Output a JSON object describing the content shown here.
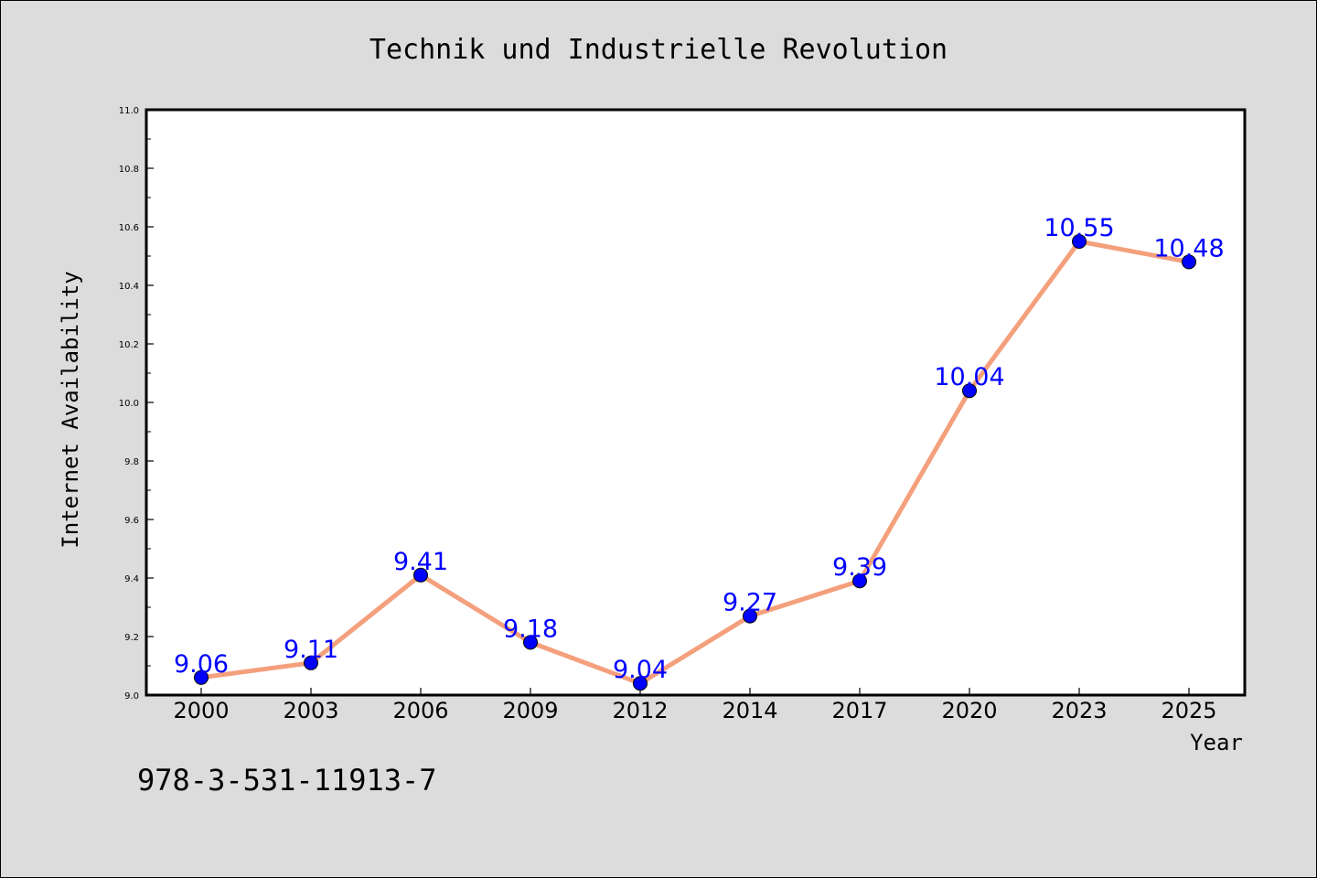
{
  "chart_data": {
    "type": "line",
    "title": "Technik und Industrielle Revolution",
    "xlabel": "Year",
    "ylabel": "Internet Availability",
    "categories": [
      "2000",
      "2003",
      "2006",
      "2009",
      "2012",
      "2014",
      "2017",
      "2020",
      "2023",
      "2025"
    ],
    "series": [
      {
        "values": [
          9.06,
          9.11,
          9.41,
          9.18,
          9.04,
          9.27,
          9.39,
          10.04,
          10.55,
          10.48
        ]
      }
    ],
    "data_labels": [
      "9.06",
      "9.11",
      "9.41",
      "9.18",
      "9.04",
      "9.27",
      "9.39",
      "10.04",
      "10.55",
      "10.48"
    ],
    "ylim": [
      9.0,
      11.0
    ],
    "yticks": [
      "9.0",
      "9.2",
      "9.4",
      "9.6",
      "9.8",
      "10.0",
      "10.2",
      "10.4",
      "10.6",
      "10.8",
      "11.0"
    ],
    "grid": false,
    "legend": false,
    "colors": {
      "line": "#f4a07c",
      "marker": "#0000ff",
      "data_label": "#0000ff"
    }
  },
  "footer": {
    "isbn": "978-3-531-11913-7"
  }
}
